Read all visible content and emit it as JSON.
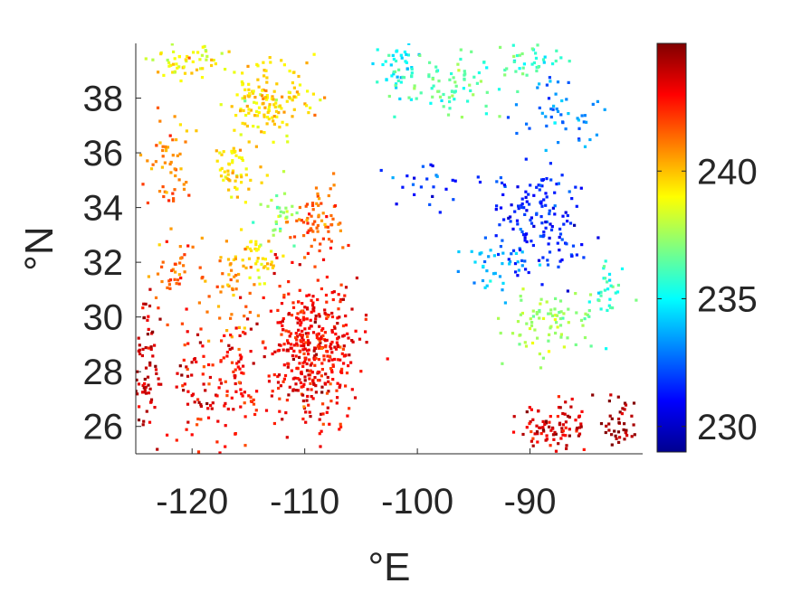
{
  "chart_data": {
    "type": "scatter",
    "title": "",
    "xlabel": "°E",
    "ylabel": "°N",
    "xlim": [
      -125,
      -80
    ],
    "ylim": [
      25,
      40
    ],
    "xticks": [
      -120,
      -110,
      -100,
      -90
    ],
    "xtick_labels": [
      "-120",
      "-110",
      "-100",
      "-90"
    ],
    "yticks": [
      26,
      28,
      30,
      32,
      34,
      36,
      38
    ],
    "ytick_labels": [
      "26",
      "28",
      "30",
      "32",
      "34",
      "36",
      "38"
    ],
    "grid": false,
    "colormap": "jet",
    "colorbar": {
      "clim": [
        229,
        245
      ],
      "ticks": [
        230,
        235,
        240
      ],
      "tick_labels": [
        "230",
        "235",
        "240"
      ],
      "colors": [
        "#00008f",
        "#0000ff",
        "#0080ff",
        "#00ffff",
        "#80ff80",
        "#ffff00",
        "#ff8000",
        "#ff0000",
        "#800000"
      ]
    },
    "clusters": [
      {
        "x": -120.5,
        "y": 39.3,
        "sx": 3.5,
        "sy": 0.5,
        "n": 55,
        "value": 239.0
      },
      {
        "x": -113.0,
        "y": 38.0,
        "sx": 3.0,
        "sy": 1.2,
        "n": 140,
        "value": 239.5
      },
      {
        "x": -101.5,
        "y": 39.0,
        "sx": 1.8,
        "sy": 0.8,
        "n": 45,
        "value": 235.0
      },
      {
        "x": -97.0,
        "y": 38.5,
        "sx": 3.5,
        "sy": 1.0,
        "n": 75,
        "value": 236.5
      },
      {
        "x": -90.0,
        "y": 39.3,
        "sx": 3.0,
        "sy": 0.6,
        "n": 35,
        "value": 236.0
      },
      {
        "x": -87.0,
        "y": 37.5,
        "sx": 3.0,
        "sy": 1.3,
        "n": 50,
        "value": 233.0
      },
      {
        "x": -122.0,
        "y": 35.5,
        "sx": 1.8,
        "sy": 1.6,
        "n": 55,
        "value": 241.0
      },
      {
        "x": -116.0,
        "y": 35.5,
        "sx": 2.0,
        "sy": 1.3,
        "n": 60,
        "value": 239.5
      },
      {
        "x": -112.0,
        "y": 33.8,
        "sx": 1.5,
        "sy": 1.0,
        "n": 30,
        "value": 237.5
      },
      {
        "x": -109.0,
        "y": 33.5,
        "sx": 2.0,
        "sy": 1.0,
        "n": 70,
        "value": 241.5
      },
      {
        "x": -99.0,
        "y": 34.8,
        "sx": 3.0,
        "sy": 0.9,
        "n": 25,
        "value": 232.0
      },
      {
        "x": -89.0,
        "y": 33.5,
        "sx": 3.5,
        "sy": 1.6,
        "n": 150,
        "value": 231.5
      },
      {
        "x": -93.0,
        "y": 32.0,
        "sx": 3.0,
        "sy": 1.0,
        "n": 35,
        "value": 234.0
      },
      {
        "x": -114.5,
        "y": 32.2,
        "sx": 1.8,
        "sy": 0.8,
        "n": 45,
        "value": 239.5
      },
      {
        "x": -122.0,
        "y": 31.5,
        "sx": 2.0,
        "sy": 1.2,
        "n": 40,
        "value": 241.5
      },
      {
        "x": -117.0,
        "y": 31.0,
        "sx": 2.0,
        "sy": 1.5,
        "n": 45,
        "value": 241.0
      },
      {
        "x": -88.0,
        "y": 29.8,
        "sx": 3.5,
        "sy": 1.0,
        "n": 80,
        "value": 237.5
      },
      {
        "x": -83.0,
        "y": 31.0,
        "sx": 1.5,
        "sy": 1.0,
        "n": 30,
        "value": 236.0
      },
      {
        "x": -109.5,
        "y": 28.8,
        "sx": 3.5,
        "sy": 2.2,
        "n": 420,
        "value": 243.0
      },
      {
        "x": -117.0,
        "y": 27.5,
        "sx": 2.5,
        "sy": 1.6,
        "n": 90,
        "value": 243.0
      },
      {
        "x": -124.0,
        "y": 28.0,
        "sx": 1.0,
        "sy": 2.0,
        "n": 70,
        "value": 244.0
      },
      {
        "x": -120.0,
        "y": 27.8,
        "sx": 1.5,
        "sy": 1.5,
        "n": 40,
        "value": 243.5
      },
      {
        "x": -88.0,
        "y": 26.0,
        "sx": 3.0,
        "sy": 0.8,
        "n": 90,
        "value": 243.5
      },
      {
        "x": -82.0,
        "y": 26.0,
        "sx": 1.5,
        "sy": 0.9,
        "n": 40,
        "value": 244.5
      }
    ]
  }
}
